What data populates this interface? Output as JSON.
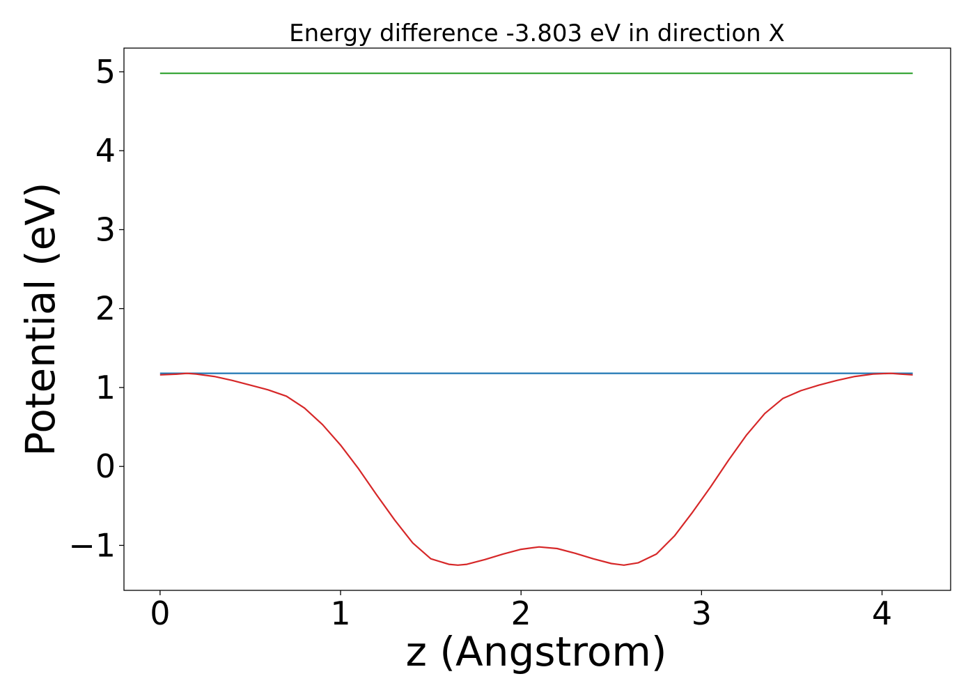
{
  "chart_data": {
    "type": "line",
    "title": "Energy difference -3.803 eV in direction X",
    "xlabel": "z (Angstrom)",
    "ylabel": "Potential (eV)",
    "xlim": [
      -0.2,
      4.38
    ],
    "ylim": [
      -1.57,
      5.3
    ],
    "grid": false,
    "xticks": [
      0,
      1,
      2,
      3,
      4
    ],
    "xtick_labels": [
      "0",
      "1",
      "2",
      "3",
      "4"
    ],
    "yticks": [
      -1,
      0,
      1,
      2,
      3,
      4,
      5
    ],
    "ytick_labels": [
      "−1",
      "0",
      "1",
      "2",
      "3",
      "4",
      "5"
    ],
    "series": [
      {
        "color": "#2ca02c",
        "x": [
          0,
          4.17
        ],
        "y": [
          4.98,
          4.98
        ]
      },
      {
        "color": "#1f77b4",
        "x": [
          0,
          4.17
        ],
        "y": [
          1.18,
          1.18
        ]
      },
      {
        "color": "#d62728",
        "x": [
          0,
          0.1,
          0.15,
          0.2,
          0.3,
          0.4,
          0.5,
          0.6,
          0.7,
          0.8,
          0.9,
          1.0,
          1.1,
          1.2,
          1.3,
          1.4,
          1.5,
          1.6,
          1.65,
          1.7,
          1.8,
          1.9,
          2.0,
          2.1,
          2.2,
          2.3,
          2.4,
          2.5,
          2.57,
          2.65,
          2.75,
          2.85,
          2.95,
          3.05,
          3.15,
          3.25,
          3.35,
          3.45,
          3.55,
          3.65,
          3.75,
          3.85,
          3.95,
          4.05,
          4.1,
          4.17
        ],
        "y": [
          1.16,
          1.17,
          1.18,
          1.17,
          1.14,
          1.09,
          1.03,
          0.97,
          0.89,
          0.74,
          0.53,
          0.27,
          -0.03,
          -0.36,
          -0.68,
          -0.97,
          -1.17,
          -1.24,
          -1.25,
          -1.24,
          -1.18,
          -1.11,
          -1.05,
          -1.02,
          -1.04,
          -1.1,
          -1.17,
          -1.23,
          -1.25,
          -1.22,
          -1.11,
          -0.88,
          -0.58,
          -0.26,
          0.08,
          0.4,
          0.67,
          0.86,
          0.96,
          1.03,
          1.09,
          1.14,
          1.17,
          1.18,
          1.17,
          1.16
        ]
      }
    ]
  }
}
